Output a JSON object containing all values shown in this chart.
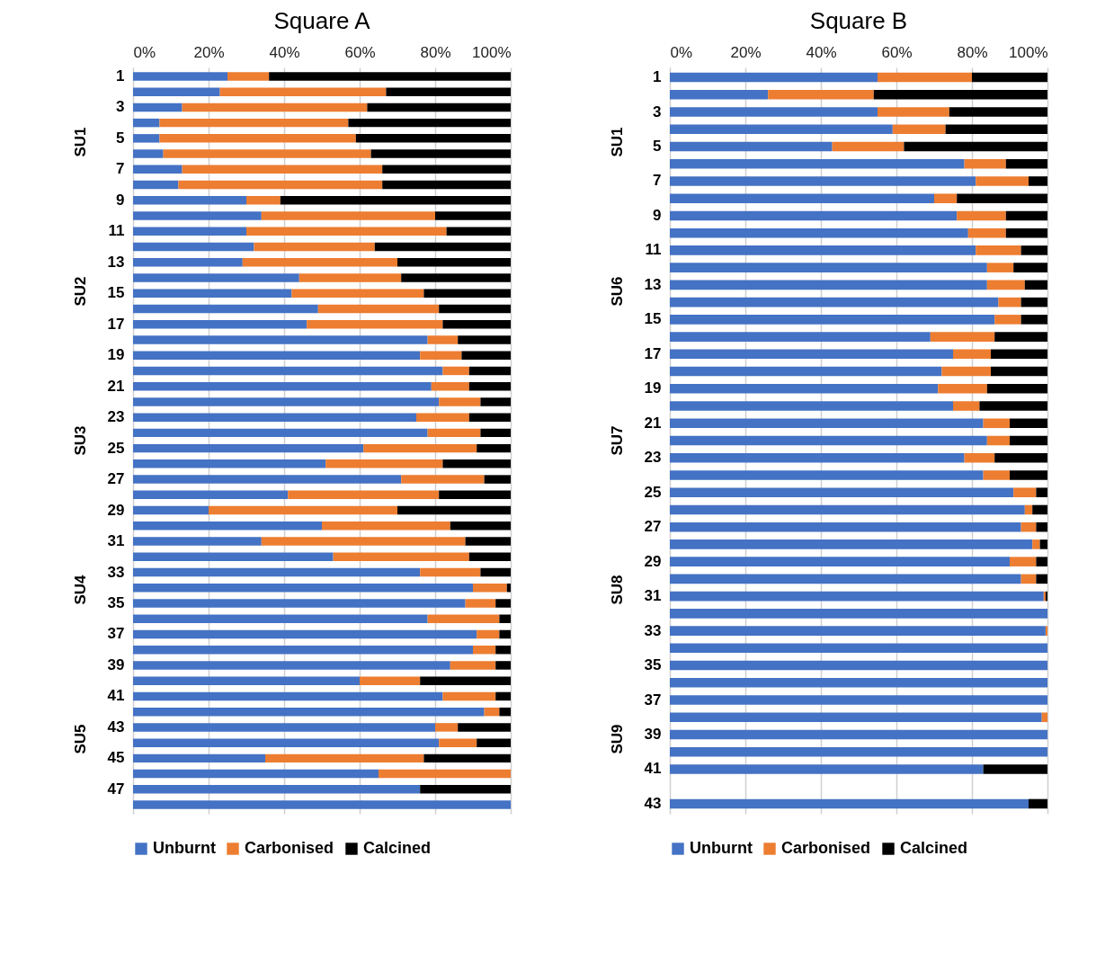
{
  "chart_data": [
    {
      "type": "bar",
      "title": "Square A",
      "orientation": "horizontal",
      "stacked": true,
      "grid": "x",
      "legend": "bottom",
      "categories": [
        "1",
        null,
        "3",
        null,
        "5",
        null,
        "7",
        null,
        "9",
        null,
        "11",
        null,
        "13",
        null,
        "15",
        null,
        "17",
        null,
        "19",
        null,
        "21",
        null,
        "23",
        null,
        "25",
        null,
        "27",
        null,
        "29",
        null,
        "31",
        null,
        "33",
        null,
        "35",
        null,
        "37",
        null,
        "39",
        null,
        "41",
        null,
        "43",
        null,
        "45",
        null,
        "47",
        null
      ],
      "xlim": [
        0,
        100
      ],
      "xticks": [
        {
          "value": 0,
          "label": "0%"
        },
        {
          "value": 20,
          "label": "20%"
        },
        {
          "value": 40,
          "label": "40%"
        },
        {
          "value": 60,
          "label": "60%"
        },
        {
          "value": 80,
          "label": "80%"
        },
        {
          "value": 100,
          "label": "100%"
        }
      ],
      "series": [
        {
          "name": "Unburnt",
          "color": "#4472c4",
          "values": [
            25,
            23,
            13,
            7,
            7,
            8,
            13,
            12,
            30,
            34,
            30,
            32,
            29,
            44,
            42,
            49,
            46,
            78,
            76,
            82,
            79,
            81,
            75,
            78,
            61,
            51,
            71,
            41,
            20,
            50,
            34,
            53,
            76,
            90,
            88,
            78,
            91,
            90,
            84,
            60,
            82,
            93,
            80,
            81,
            35,
            65,
            76,
            100
          ]
        },
        {
          "name": "Carbonised",
          "color": "#ed7d31",
          "values": [
            11,
            44,
            49,
            50,
            52,
            55,
            53,
            54,
            9,
            46,
            53,
            32,
            41,
            27,
            35,
            32,
            36,
            8,
            11,
            7,
            10,
            11,
            14,
            14,
            30,
            31,
            22,
            40,
            50,
            34,
            54,
            36,
            16,
            9,
            8,
            19,
            6,
            6,
            12,
            16,
            14,
            4,
            6,
            10,
            42,
            35,
            null,
            null
          ]
        },
        {
          "name": "Calcined",
          "color": "#000000",
          "values": [
            64,
            33,
            38,
            43,
            41,
            37,
            34,
            34,
            61,
            20,
            17,
            36,
            30,
            29,
            23,
            19,
            18,
            14,
            13,
            11,
            11,
            8,
            11,
            8,
            9,
            18,
            7,
            19,
            30,
            16,
            12,
            11,
            8,
            1,
            4,
            3,
            3,
            4,
            4,
            24,
            4,
            3,
            14,
            9,
            23,
            null,
            24,
            null
          ]
        }
      ],
      "annotations": [
        "SU1",
        "SU2",
        "SU3",
        "SU4",
        "SU5"
      ]
    },
    {
      "type": "bar",
      "title": "Square B",
      "orientation": "horizontal",
      "stacked": true,
      "grid": "x",
      "legend": "bottom",
      "categories": [
        "1",
        null,
        "3",
        null,
        "5",
        null,
        "7",
        null,
        "9",
        null,
        "11",
        null,
        "13",
        null,
        "15",
        null,
        "17",
        null,
        "19",
        null,
        "21",
        null,
        "23",
        null,
        "25",
        null,
        "27",
        null,
        "29",
        null,
        "31",
        null,
        "33",
        null,
        "35",
        null,
        "37",
        null,
        "39",
        null,
        "41",
        null,
        "43"
      ],
      "xlim": [
        0,
        100
      ],
      "xticks": [
        {
          "value": 0,
          "label": "0%"
        },
        {
          "value": 20,
          "label": "20%"
        },
        {
          "value": 40,
          "label": "40%"
        },
        {
          "value": 60,
          "label": "60%"
        },
        {
          "value": 80,
          "label": "80%"
        },
        {
          "value": 100,
          "label": "100%"
        }
      ],
      "series": [
        {
          "name": "Unburnt",
          "color": "#4472c4",
          "values": [
            55,
            26,
            55,
            59,
            43,
            78,
            81,
            70,
            76,
            79,
            81,
            84,
            84,
            87,
            86,
            69,
            75,
            72,
            71,
            75,
            83,
            84,
            78,
            83,
            91,
            94,
            93,
            96,
            90,
            93,
            99,
            100,
            99.5,
            100,
            100,
            100,
            100,
            98.5,
            100,
            100,
            83,
            null,
            95
          ]
        },
        {
          "name": "Carbonised",
          "color": "#ed7d31",
          "values": [
            25,
            28,
            19,
            14,
            19,
            11,
            14,
            6,
            13,
            10,
            12,
            7,
            10,
            6,
            7,
            17,
            10,
            13,
            13,
            7,
            7,
            6,
            8,
            7,
            6,
            2,
            4,
            2,
            7,
            4,
            0.5,
            null,
            0.5,
            null,
            null,
            null,
            null,
            1.5,
            null,
            null,
            null,
            null,
            null
          ]
        },
        {
          "name": "Calcined",
          "color": "#000000",
          "values": [
            20,
            46,
            26,
            27,
            38,
            11,
            5,
            24,
            11,
            11,
            7,
            9,
            6,
            7,
            7,
            14,
            15,
            15,
            16,
            18,
            10,
            10,
            14,
            10,
            3,
            4,
            3,
            2,
            3,
            3,
            0.5,
            null,
            null,
            null,
            null,
            null,
            null,
            null,
            null,
            null,
            17,
            null,
            5
          ]
        }
      ],
      "annotations": [
        "SU1",
        "SU6",
        "SU7",
        "SU8",
        "SU9"
      ]
    }
  ]
}
